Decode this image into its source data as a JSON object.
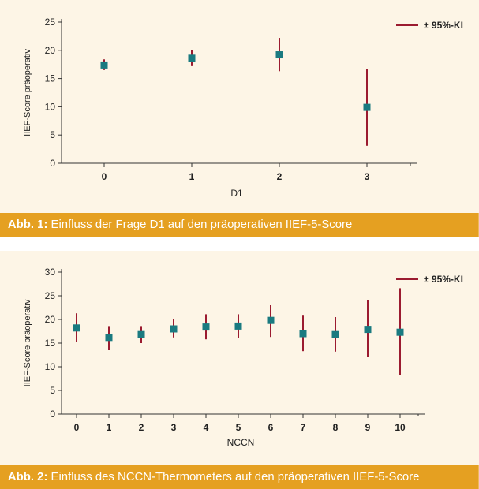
{
  "colors": {
    "panel_bg": "#fdf5e6",
    "caption_bg": "#e5a021",
    "caption_text": "#ffffff",
    "marker": "#1a7a80",
    "error_bar": "#9b1b30",
    "axis": "#333333"
  },
  "chart_data": [
    {
      "type": "scatter",
      "title": "",
      "xlabel": "D1",
      "ylabel": "IIEF-Score präoperativ",
      "ylim": [
        0,
        25
      ],
      "yticks": [
        0,
        5,
        10,
        15,
        20,
        25
      ],
      "categories": [
        "0",
        "1",
        "2",
        "3"
      ],
      "values": [
        17.4,
        18.6,
        19.2,
        9.9
      ],
      "ci_low": [
        16.5,
        17.2,
        16.3,
        3.1
      ],
      "ci_high": [
        18.4,
        20.1,
        22.2,
        16.7
      ],
      "legend": {
        "label": "± 95%-KI",
        "position": "top-right"
      },
      "grid": false
    },
    {
      "type": "scatter",
      "title": "",
      "xlabel": "NCCN",
      "ylabel": "IIEF-Score präoperativ",
      "ylim": [
        0,
        30
      ],
      "yticks": [
        0,
        5,
        10,
        15,
        20,
        25,
        30
      ],
      "categories": [
        "0",
        "1",
        "2",
        "3",
        "4",
        "5",
        "6",
        "7",
        "8",
        "9",
        "10"
      ],
      "values": [
        18.2,
        16.2,
        16.8,
        18.0,
        18.4,
        18.6,
        19.8,
        17.0,
        16.8,
        17.9,
        17.3
      ],
      "ci_low": [
        15.3,
        13.5,
        15.0,
        16.2,
        15.8,
        16.1,
        16.3,
        13.3,
        13.2,
        12.0,
        8.2
      ],
      "ci_high": [
        21.3,
        18.6,
        18.6,
        20.0,
        21.1,
        21.1,
        23.0,
        20.8,
        20.5,
        24.0,
        26.6
      ],
      "legend": {
        "label": "± 95%-KI",
        "position": "top-right"
      },
      "grid": false
    }
  ],
  "captions": [
    {
      "lead": "Abb. 1:",
      "text": " Einfluss der Frage D1 auf den präoperativen IIEF-5-Score"
    },
    {
      "lead": "Abb. 2:",
      "text": " Einfluss des NCCN-Thermometers auf den präoperativen IIEF-5-Score"
    }
  ]
}
